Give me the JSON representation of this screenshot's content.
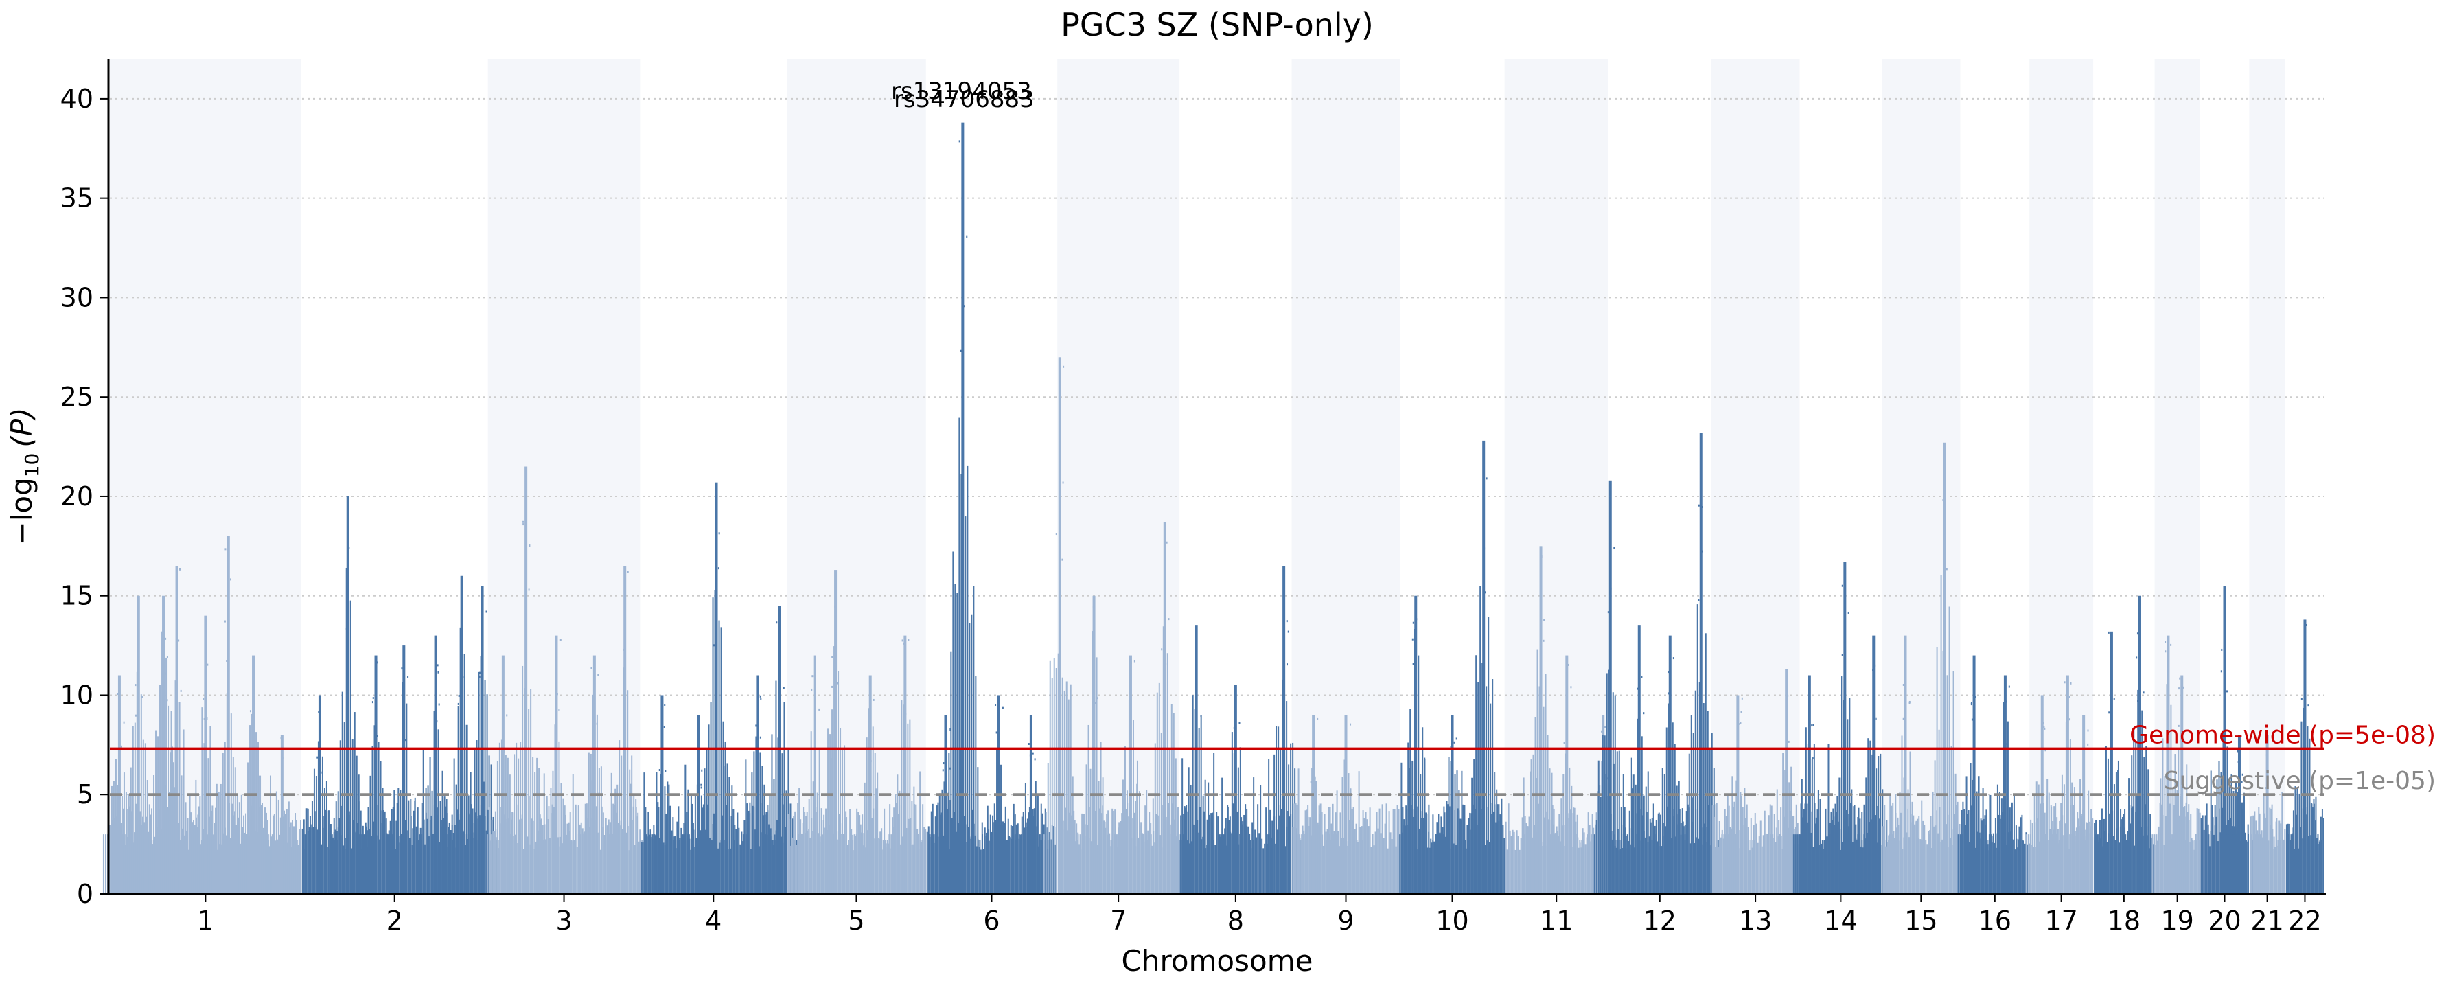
{
  "chart_data": {
    "type": "scatter",
    "subtype": "manhattan",
    "title": "PGC3 SZ (SNP-only)",
    "xlabel": "Chromosome",
    "ylabel_prefix": "−log",
    "ylabel_sub": "10",
    "ylabel_suffix": "(P)",
    "ylim": [
      0,
      42
    ],
    "yticks": [
      0,
      5,
      10,
      15,
      20,
      25,
      30,
      35,
      40
    ],
    "grid": "horizontal dotted",
    "colors": {
      "odd_chromosome": "#9fb6d4",
      "even_chromosome": "#4a76a8",
      "band": "#f4f6fa",
      "genome_wide_line": "#cc0000",
      "suggestive_line": "#888888"
    },
    "chromosomes": [
      {
        "label": "1",
        "length": 249,
        "peaks": [
          [
            0.05,
            11
          ],
          [
            0.15,
            15
          ],
          [
            0.28,
            15
          ],
          [
            0.35,
            16.5
          ],
          [
            0.5,
            14
          ],
          [
            0.62,
            18
          ],
          [
            0.75,
            12
          ],
          [
            0.9,
            8
          ]
        ]
      },
      {
        "label": "2",
        "length": 243,
        "peaks": [
          [
            0.1,
            10
          ],
          [
            0.25,
            20
          ],
          [
            0.4,
            12
          ],
          [
            0.55,
            12.5
          ],
          [
            0.72,
            13
          ],
          [
            0.86,
            16
          ],
          [
            0.97,
            15.5
          ]
        ]
      },
      {
        "label": "3",
        "length": 198,
        "peaks": [
          [
            0.1,
            12
          ],
          [
            0.25,
            21.5
          ],
          [
            0.45,
            13
          ],
          [
            0.7,
            12
          ],
          [
            0.9,
            16.5
          ]
        ]
      },
      {
        "label": "4",
        "length": 191,
        "peaks": [
          [
            0.15,
            10
          ],
          [
            0.4,
            9
          ],
          [
            0.52,
            20.7
          ],
          [
            0.8,
            11
          ],
          [
            0.95,
            14.5
          ]
        ]
      },
      {
        "label": "5",
        "length": 181,
        "peaks": [
          [
            0.2,
            12
          ],
          [
            0.35,
            16.3
          ],
          [
            0.6,
            11
          ],
          [
            0.85,
            13
          ]
        ]
      },
      {
        "label": "6",
        "length": 171,
        "peaks": [
          [
            0.15,
            9
          ],
          [
            0.28,
            38.8
          ],
          [
            0.55,
            10
          ],
          [
            0.8,
            9
          ]
        ]
      },
      {
        "label": "7",
        "length": 159,
        "peaks": [
          [
            0.02,
            27
          ],
          [
            0.3,
            15
          ],
          [
            0.6,
            12
          ],
          [
            0.88,
            18.7
          ]
        ]
      },
      {
        "label": "8",
        "length": 146,
        "peaks": [
          [
            0.15,
            13.5
          ],
          [
            0.5,
            10.5
          ],
          [
            0.93,
            16.5
          ]
        ]
      },
      {
        "label": "9",
        "length": 141,
        "peaks": [
          [
            0.2,
            9
          ],
          [
            0.5,
            9
          ]
        ]
      },
      {
        "label": "10",
        "length": 136,
        "peaks": [
          [
            0.15,
            15
          ],
          [
            0.5,
            9
          ],
          [
            0.8,
            22.8
          ]
        ]
      },
      {
        "label": "11",
        "length": 135,
        "peaks": [
          [
            0.35,
            17.5
          ],
          [
            0.6,
            12
          ],
          [
            0.95,
            9
          ]
        ]
      },
      {
        "label": "12",
        "length": 134,
        "peaks": [
          [
            0.02,
            20.8
          ],
          [
            0.3,
            13.5
          ],
          [
            0.6,
            13
          ],
          [
            0.9,
            23.2
          ]
        ]
      },
      {
        "label": "13",
        "length": 115,
        "peaks": [
          [
            0.3,
            10
          ],
          [
            0.85,
            11.3
          ]
        ]
      },
      {
        "label": "14",
        "length": 107,
        "peaks": [
          [
            0.12,
            11
          ],
          [
            0.55,
            16.7
          ],
          [
            0.9,
            13
          ]
        ]
      },
      {
        "label": "15",
        "length": 102,
        "peaks": [
          [
            0.3,
            13
          ],
          [
            0.8,
            22.7
          ]
        ]
      },
      {
        "label": "16",
        "length": 90,
        "peaks": [
          [
            0.2,
            12
          ],
          [
            0.65,
            11
          ]
        ]
      },
      {
        "label": "17",
        "length": 83,
        "peaks": [
          [
            0.2,
            10
          ],
          [
            0.6,
            11
          ],
          [
            0.85,
            9
          ]
        ]
      },
      {
        "label": "18",
        "length": 80,
        "peaks": [
          [
            0.3,
            13.2
          ],
          [
            0.75,
            15
          ]
        ]
      },
      {
        "label": "19",
        "length": 59,
        "peaks": [
          [
            0.3,
            13
          ],
          [
            0.6,
            11
          ]
        ]
      },
      {
        "label": "20",
        "length": 64,
        "peaks": [
          [
            0.5,
            15.5
          ],
          [
            0.8,
            8
          ]
        ]
      },
      {
        "label": "21",
        "length": 47,
        "peaks": [
          [
            0.5,
            8
          ]
        ]
      },
      {
        "label": "22",
        "length": 51,
        "peaks": [
          [
            0.5,
            13.8
          ]
        ]
      }
    ],
    "thresholds": [
      {
        "name": "Genome-wide",
        "label": "Genome-wide (p=5e-08)",
        "value": 7.3,
        "style": "solid"
      },
      {
        "name": "Suggestive",
        "label": "Suggestive (p=1e-05)",
        "value": 5.0,
        "style": "dashed"
      }
    ],
    "annotation": {
      "chromosome": "6",
      "text_lines": [
        "rs13194053",
        "rs34706883"
      ],
      "y": 40
    }
  }
}
